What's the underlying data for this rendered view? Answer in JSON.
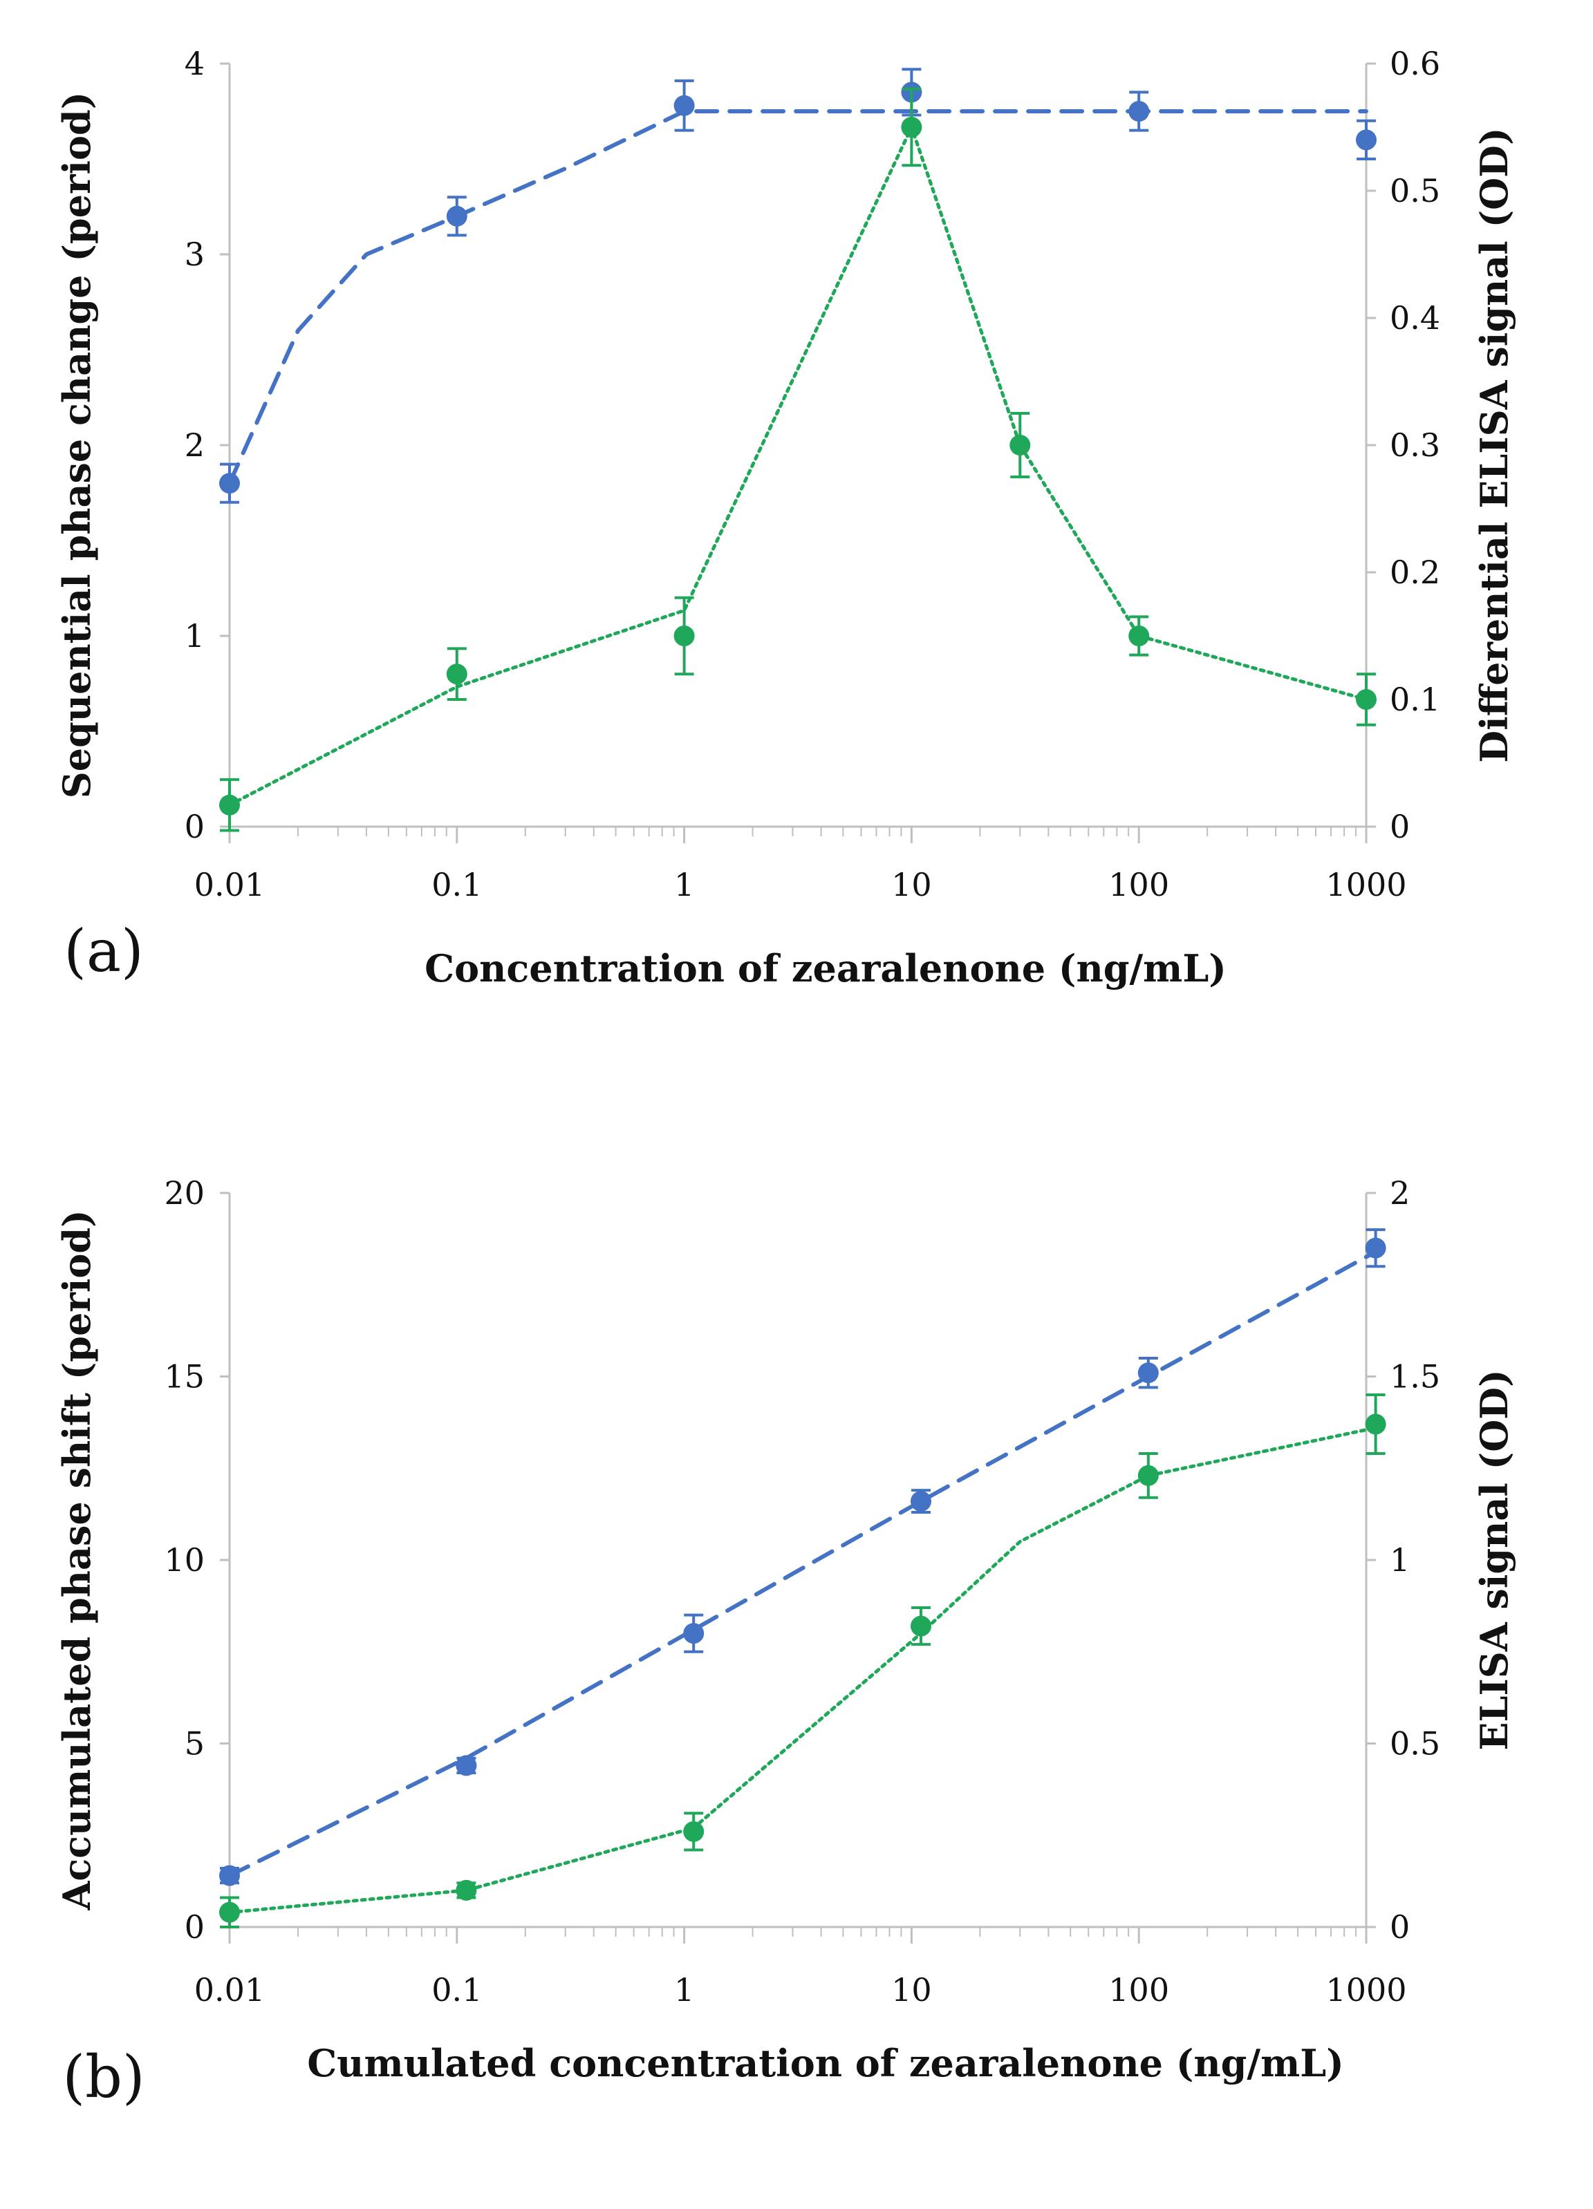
{
  "colors": {
    "series_a": "#4472C4",
    "series_b": "#1FA75A",
    "axis": "#bfbfbf",
    "text": "#111111"
  },
  "chart_data": [
    {
      "type": "scatter",
      "panel_label": "(a)",
      "xlabel": "Concentration of zearalenone  (ng/mL)",
      "ylabel_left": "Sequential phase change  (period)",
      "ylabel_right": "Differential ELISA signal  (OD)",
      "x_scale": "log",
      "xlim": [
        0.01,
        1000
      ],
      "xtick_labels": [
        "0.01",
        "0.1",
        "1",
        "10",
        "100",
        "1000"
      ],
      "ylim_left": [
        0,
        4
      ],
      "ytick_labels_left": [
        "0",
        "1",
        "2",
        "3",
        "4"
      ],
      "ylim_right": [
        0,
        0.6
      ],
      "ytick_labels_right": [
        "0",
        "0.1",
        "0.2",
        "0.3",
        "0.4",
        "0.5",
        "0.6"
      ],
      "series": [
        {
          "name": "Sequential phase change",
          "axis": "left",
          "color": "#4472C4",
          "line": "dashed",
          "x": [
            0.01,
            0.1,
            1,
            10,
            100,
            1000
          ],
          "y": [
            1.8,
            3.2,
            3.78,
            3.85,
            3.75,
            3.6
          ],
          "err": [
            0.1,
            0.1,
            0.13,
            0.12,
            0.1,
            0.1
          ],
          "fit_x": [
            0.01,
            0.02,
            0.04,
            0.1,
            0.3,
            1,
            1000
          ],
          "fit_y": [
            1.8,
            2.6,
            3.0,
            3.2,
            3.45,
            3.75,
            3.75
          ]
        },
        {
          "name": "Differential ELISA signal",
          "axis": "right",
          "color": "#1FA75A",
          "line": "dotted",
          "x": [
            0.01,
            0.1,
            1,
            10,
            30,
            100,
            1000
          ],
          "y": [
            0.017,
            0.12,
            0.15,
            0.55,
            0.3,
            0.15,
            0.1
          ],
          "err": [
            0.02,
            0.02,
            0.03,
            0.03,
            0.025,
            0.015,
            0.02
          ],
          "fit_x": [
            0.01,
            0.1,
            1,
            10,
            30,
            100,
            1000
          ],
          "fit_y": [
            0.017,
            0.11,
            0.17,
            0.55,
            0.3,
            0.15,
            0.1
          ]
        }
      ]
    },
    {
      "type": "scatter",
      "panel_label": "(b)",
      "xlabel": "Cumulated concentration of zearalenone  (ng/mL)",
      "ylabel_left": "Accumulated phase shift  (period)",
      "ylabel_right": "ELISA signal  (OD)",
      "x_scale": "log",
      "xlim": [
        0.01,
        1000
      ],
      "xtick_labels": [
        "0.01",
        "0.1",
        "1",
        "10",
        "100",
        "1000"
      ],
      "ylim_left": [
        0,
        20
      ],
      "ytick_labels_left": [
        "0",
        "5",
        "10",
        "15",
        "20"
      ],
      "ylim_right": [
        0,
        2
      ],
      "ytick_labels_right": [
        "0",
        "0.5",
        "1",
        "1.5",
        "2"
      ],
      "series": [
        {
          "name": "Accumulated phase shift",
          "axis": "left",
          "color": "#4472C4",
          "line": "dashed",
          "x": [
            0.01,
            0.11,
            1.1,
            11,
            110,
            1100
          ],
          "y": [
            1.4,
            4.4,
            8.0,
            11.6,
            15.1,
            18.5
          ],
          "err": [
            0.2,
            0.2,
            0.5,
            0.3,
            0.4,
            0.5
          ],
          "fit_x": [
            0.01,
            0.11,
            1.1,
            11,
            110,
            1100
          ],
          "fit_y": [
            1.4,
            4.6,
            8.1,
            11.6,
            15.0,
            18.4
          ]
        },
        {
          "name": "ELISA signal",
          "axis": "right",
          "color": "#1FA75A",
          "line": "dotted",
          "x": [
            0.01,
            0.11,
            1.1,
            11,
            110,
            1100
          ],
          "y": [
            0.04,
            0.1,
            0.26,
            0.82,
            1.23,
            1.37
          ],
          "err": [
            0.04,
            0.02,
            0.05,
            0.05,
            0.06,
            0.08
          ],
          "fit_x": [
            0.01,
            0.11,
            1.1,
            11,
            30,
            110,
            1100
          ],
          "fit_y": [
            0.04,
            0.1,
            0.27,
            0.8,
            1.05,
            1.23,
            1.36
          ]
        }
      ]
    }
  ]
}
